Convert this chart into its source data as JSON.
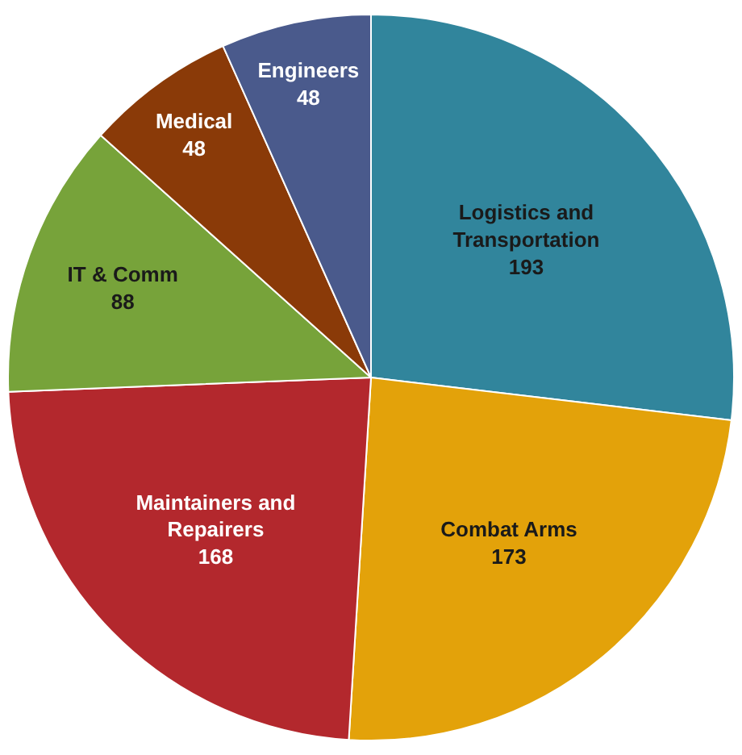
{
  "chart_data": {
    "type": "pie",
    "categories": [
      "Logistics and Transportation",
      "Combat Arms",
      "Maintainers and Repairers",
      "IT & Comm",
      "Medical",
      "Engineers"
    ],
    "values": [
      193,
      173,
      168,
      88,
      48,
      48
    ],
    "colors": [
      "#31859c",
      "#e3a20a",
      "#b3282d",
      "#77a33a",
      "#8a3a08",
      "#4a5a8c"
    ],
    "data_labels": true
  }
}
